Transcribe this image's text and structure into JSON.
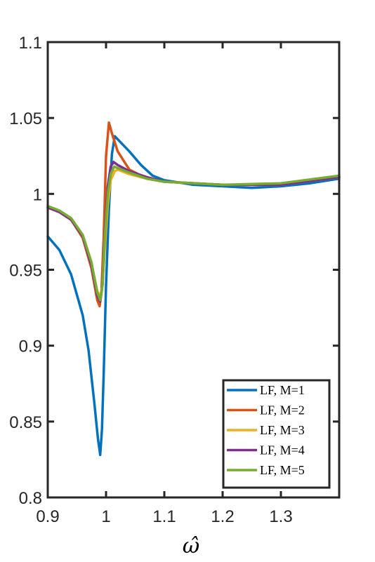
{
  "chart_data": {
    "type": "line",
    "title": "",
    "xlabel": "ω̂",
    "ylabel": "",
    "xlim": [
      0.9,
      1.4
    ],
    "ylim": [
      0.8,
      1.1
    ],
    "xticks": [
      "0.9",
      "1",
      "1.1",
      "1.2",
      "1.3"
    ],
    "yticks": [
      "0.8",
      "0.85",
      "0.9",
      "0.95",
      "1",
      "1.05",
      "1.1"
    ],
    "grid": false,
    "legend_position": "bottom-right",
    "series": [
      {
        "name": "LF, M=1",
        "color": "#0072BD",
        "points": [
          [
            0.9,
            0.972
          ],
          [
            0.92,
            0.963
          ],
          [
            0.94,
            0.947
          ],
          [
            0.96,
            0.92
          ],
          [
            0.97,
            0.897
          ],
          [
            0.98,
            0.862
          ],
          [
            0.986,
            0.839
          ],
          [
            0.99,
            0.828
          ],
          [
            0.993,
            0.845
          ],
          [
            0.996,
            0.882
          ],
          [
            1.0,
            0.94
          ],
          [
            1.005,
            0.99
          ],
          [
            1.01,
            1.026
          ],
          [
            1.015,
            1.038
          ],
          [
            1.02,
            1.036
          ],
          [
            1.04,
            1.028
          ],
          [
            1.06,
            1.019
          ],
          [
            1.08,
            1.012
          ],
          [
            1.1,
            1.009
          ],
          [
            1.15,
            1.006
          ],
          [
            1.2,
            1.005
          ],
          [
            1.25,
            1.004
          ],
          [
            1.3,
            1.005
          ],
          [
            1.35,
            1.007
          ],
          [
            1.4,
            1.01
          ]
        ]
      },
      {
        "name": "LF, M=2",
        "color": "#D95319",
        "points": [
          [
            0.9,
            0.991
          ],
          [
            0.92,
            0.988
          ],
          [
            0.94,
            0.983
          ],
          [
            0.96,
            0.971
          ],
          [
            0.975,
            0.951
          ],
          [
            0.985,
            0.93
          ],
          [
            0.989,
            0.926
          ],
          [
            0.992,
            0.935
          ],
          [
            0.996,
            0.972
          ],
          [
            1.0,
            1.025
          ],
          [
            1.005,
            1.047
          ],
          [
            1.01,
            1.04
          ],
          [
            1.02,
            1.028
          ],
          [
            1.04,
            1.016
          ],
          [
            1.07,
            1.01
          ],
          [
            1.1,
            1.008
          ],
          [
            1.15,
            1.007
          ],
          [
            1.2,
            1.006
          ],
          [
            1.3,
            1.006
          ],
          [
            1.4,
            1.011
          ]
        ]
      },
      {
        "name": "LF, M=3",
        "color": "#EDB120",
        "points": [
          [
            0.9,
            0.991
          ],
          [
            0.92,
            0.988
          ],
          [
            0.94,
            0.983
          ],
          [
            0.96,
            0.972
          ],
          [
            0.975,
            0.954
          ],
          [
            0.985,
            0.936
          ],
          [
            0.99,
            0.932
          ],
          [
            0.994,
            0.94
          ],
          [
            0.998,
            0.965
          ],
          [
            1.003,
            0.993
          ],
          [
            1.008,
            1.009
          ],
          [
            1.015,
            1.015
          ],
          [
            1.02,
            1.016
          ],
          [
            1.04,
            1.013
          ],
          [
            1.07,
            1.01
          ],
          [
            1.1,
            1.008
          ],
          [
            1.2,
            1.006
          ],
          [
            1.3,
            1.006
          ],
          [
            1.4,
            1.011
          ]
        ]
      },
      {
        "name": "LF, M=4",
        "color": "#7E2F8E",
        "points": [
          [
            0.9,
            0.991
          ],
          [
            0.92,
            0.988
          ],
          [
            0.94,
            0.983
          ],
          [
            0.96,
            0.972
          ],
          [
            0.975,
            0.953
          ],
          [
            0.985,
            0.933
          ],
          [
            0.99,
            0.929
          ],
          [
            0.994,
            0.94
          ],
          [
            0.998,
            0.975
          ],
          [
            1.003,
            1.005
          ],
          [
            1.008,
            1.018
          ],
          [
            1.013,
            1.021
          ],
          [
            1.02,
            1.019
          ],
          [
            1.04,
            1.015
          ],
          [
            1.07,
            1.011
          ],
          [
            1.1,
            1.008
          ],
          [
            1.2,
            1.006
          ],
          [
            1.3,
            1.006
          ],
          [
            1.4,
            1.011
          ]
        ]
      },
      {
        "name": "LF, M=5",
        "color": "#77AC30",
        "points": [
          [
            0.9,
            0.992
          ],
          [
            0.92,
            0.989
          ],
          [
            0.94,
            0.984
          ],
          [
            0.96,
            0.973
          ],
          [
            0.975,
            0.955
          ],
          [
            0.985,
            0.935
          ],
          [
            0.99,
            0.93
          ],
          [
            0.994,
            0.94
          ],
          [
            0.998,
            0.972
          ],
          [
            1.003,
            1.0
          ],
          [
            1.008,
            1.013
          ],
          [
            1.014,
            1.018
          ],
          [
            1.02,
            1.017
          ],
          [
            1.04,
            1.014
          ],
          [
            1.07,
            1.01
          ],
          [
            1.1,
            1.008
          ],
          [
            1.2,
            1.006
          ],
          [
            1.3,
            1.007
          ],
          [
            1.4,
            1.012
          ]
        ]
      }
    ]
  }
}
